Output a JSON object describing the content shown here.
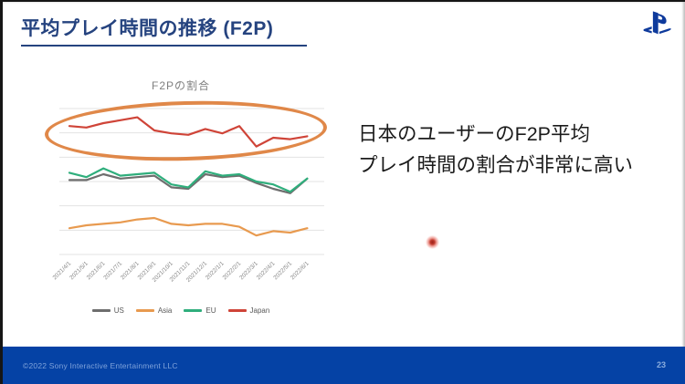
{
  "slide": {
    "title": "平均プレイ時間の推移 (F2P)",
    "annotation_line1": "日本のユーザーのF2P平均",
    "annotation_line2": "プレイ時間の割合が非常に高い",
    "footer_copyright": "©2022 Sony Interactive Entertainment LLC",
    "page_number": "23"
  },
  "colors": {
    "title_blue": "#25437f",
    "footer_blue": "#0542a5",
    "footer_text": "#7ea2da",
    "ellipse_orange": "#dd7e3a",
    "gridline": "#e3e3e3",
    "axis_label": "#8a8a8a",
    "chart_title": "#7f7f7f",
    "laser_dot_red": "#c0392b",
    "ps_logo_blue": "#0e3a9c"
  },
  "chart_data": {
    "type": "line",
    "title": "F2Pの割合",
    "categories": [
      "2021/4/1",
      "2021/5/1",
      "2021/6/1",
      "2021/7/1",
      "2021/8/1",
      "2021/9/1",
      "2021/10/1",
      "2021/11/1",
      "2021/12/1",
      "2022/1/1",
      "2022/2/1",
      "2022/3/1",
      "2022/4/1",
      "2022/5/1",
      "2022/6/1"
    ],
    "series": [
      {
        "name": "US",
        "color": "#6e6e6e",
        "values": [
          51,
          51,
          55,
          52,
          53,
          54,
          46,
          45,
          55,
          53,
          54,
          49,
          45,
          42,
          52
        ]
      },
      {
        "name": "Asia",
        "color": "#e89a4f",
        "values": [
          18,
          20,
          21,
          22,
          24,
          25,
          21,
          20,
          21,
          21,
          19,
          13,
          16,
          15,
          18
        ]
      },
      {
        "name": "EU",
        "color": "#2fae7c",
        "values": [
          56,
          53,
          59,
          54,
          55,
          56,
          48,
          46,
          57,
          54,
          55,
          50,
          48,
          43,
          52
        ]
      },
      {
        "name": "Japan",
        "color": "#cf4438",
        "values": [
          88,
          87,
          90,
          92,
          94,
          85,
          83,
          82,
          86,
          83,
          88,
          74,
          80,
          79,
          81
        ]
      }
    ],
    "ylim": [
      0,
      100
    ],
    "xlabel": "",
    "ylabel": "",
    "grid": true,
    "legend_position": "bottom",
    "highlight": {
      "shape": "ellipse",
      "color": "#dd7e3a",
      "target_series": "Japan"
    }
  }
}
